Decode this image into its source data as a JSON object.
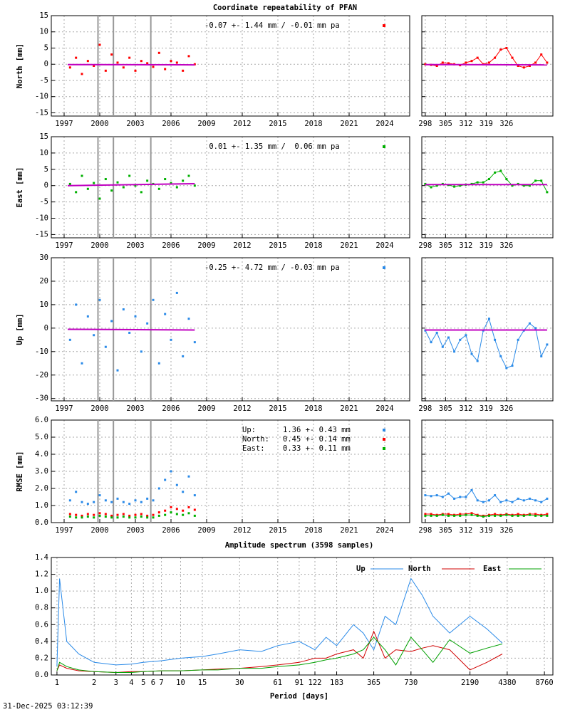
{
  "title": "Coordinate repeatability of PFAN",
  "timestamp": "31-Dec-2025 03:12:39",
  "chart_data": [
    {
      "type": "scatter",
      "ylabel": "North [mm]",
      "grid": true,
      "xlim": [
        1995.92,
        2026.1
      ],
      "ylim": [
        -16,
        15
      ],
      "xticks": [
        1997,
        2000,
        2003,
        2006,
        2009,
        2012,
        2015,
        2018,
        2021,
        2024
      ],
      "yticks": [
        -15,
        -10,
        -5,
        0,
        5,
        10,
        15
      ],
      "annotation": "-0.07 +- 1.44 mm / -0.01 mm pa",
      "events": [
        1999.85,
        2001.15,
        2004.3
      ],
      "trend": {
        "color": "#c000c0",
        "x": [
          1997.3,
          2008.0
        ],
        "y": [
          -0.1,
          -0.2
        ]
      },
      "x": [
        1997.5,
        1998,
        1998.5,
        1999,
        1999.5,
        2000,
        2000.5,
        2001,
        2001.5,
        2002,
        2002.5,
        2003,
        2003.5,
        2004,
        2004.5,
        2005,
        2005.5,
        2006,
        2006.5,
        2007,
        2007.5,
        2008
      ],
      "series": [
        {
          "color": "#ff0000",
          "values": [
            -1,
            2,
            -3,
            1,
            -0.5,
            6,
            -2,
            3,
            0.5,
            -1,
            2,
            -2,
            1,
            0.3,
            -0.8,
            3.5,
            -1.5,
            1,
            0.5,
            -2,
            2.5,
            0
          ]
        }
      ]
    },
    {
      "type": "line",
      "markers": true,
      "grid": true,
      "ytick_labels": false,
      "xlim": [
        296.8,
        342
      ],
      "ylim": [
        -16,
        15
      ],
      "xticks": [
        298,
        305,
        312,
        319,
        326
      ],
      "yticks": [
        -15,
        -10,
        -5,
        0,
        5,
        10,
        15
      ],
      "trend": {
        "color": "#c000c0",
        "x": [
          298,
          340
        ],
        "y": [
          -0.1,
          -0.2
        ]
      },
      "x": [
        298,
        300,
        302,
        304,
        306,
        308,
        310,
        312,
        314,
        316,
        318,
        320,
        322,
        324,
        326,
        328,
        330,
        332,
        334,
        336,
        338,
        340
      ],
      "series": [
        {
          "color": "#ff0000",
          "values": [
            0,
            -0.2,
            -0.5,
            0.5,
            0.3,
            0,
            -0.3,
            0.5,
            1,
            2,
            0,
            0.5,
            2,
            4.5,
            5,
            2,
            -0.5,
            -1,
            -0.5,
            0.5,
            3,
            0.5
          ]
        }
      ]
    },
    {
      "type": "scatter",
      "ylabel": "East [mm]",
      "grid": true,
      "xlim": [
        1995.92,
        2026.1
      ],
      "ylim": [
        -16,
        15
      ],
      "xticks": [
        1997,
        2000,
        2003,
        2006,
        2009,
        2012,
        2015,
        2018,
        2021,
        2024
      ],
      "yticks": [
        -15,
        -10,
        -5,
        0,
        5,
        10,
        15
      ],
      "annotation": " 0.01 +- 1.35 mm /  0.06 mm pa",
      "events": [
        1999.85,
        2001.15,
        2004.3
      ],
      "trend": {
        "color": "#c000c0",
        "x": [
          1997.3,
          2008.0
        ],
        "y": [
          0,
          0.6
        ]
      },
      "x": [
        1997.5,
        1998,
        1998.5,
        1999,
        1999.5,
        2000,
        2000.5,
        2001,
        2001.5,
        2002,
        2002.5,
        2003,
        2003.5,
        2004,
        2004.5,
        2005,
        2005.5,
        2006,
        2006.5,
        2007,
        2007.5,
        2008
      ],
      "series": [
        {
          "color": "#00b000",
          "values": [
            0.5,
            -2,
            3,
            -1,
            0.8,
            -4,
            2,
            -1.5,
            1,
            -0.5,
            3,
            0,
            -2,
            1.5,
            0.5,
            -1,
            2,
            0.8,
            -0.5,
            1.5,
            3,
            0
          ]
        }
      ]
    },
    {
      "type": "line",
      "markers": true,
      "grid": true,
      "ytick_labels": false,
      "xlim": [
        296.8,
        342
      ],
      "ylim": [
        -16,
        15
      ],
      "xticks": [
        298,
        305,
        312,
        319,
        326
      ],
      "yticks": [
        -15,
        -10,
        -5,
        0,
        5,
        10,
        15
      ],
      "trend": {
        "color": "#c000c0",
        "x": [
          298,
          340
        ],
        "y": [
          0.3,
          0.3
        ]
      },
      "x": [
        298,
        300,
        302,
        304,
        306,
        308,
        310,
        312,
        314,
        316,
        318,
        320,
        322,
        324,
        326,
        328,
        330,
        332,
        334,
        336,
        338,
        340
      ],
      "series": [
        {
          "color": "#00b000",
          "values": [
            0.5,
            -0.5,
            0,
            0.5,
            0.2,
            -0.3,
            0,
            0.3,
            0.5,
            1,
            1,
            2,
            4,
            4.5,
            2,
            0,
            0.5,
            0,
            0,
            1.5,
            1.5,
            -2
          ]
        }
      ]
    },
    {
      "type": "scatter",
      "ylabel": "Up [mm]",
      "grid": true,
      "xlim": [
        1995.92,
        2026.1
      ],
      "ylim": [
        -31,
        30
      ],
      "xticks": [
        1997,
        2000,
        2003,
        2006,
        2009,
        2012,
        2015,
        2018,
        2021,
        2024
      ],
      "yticks": [
        -30,
        -20,
        -10,
        0,
        10,
        20,
        30
      ],
      "annotation": "-0.25 +- 4.72 mm / -0.03 mm pa",
      "events": [
        1999.85,
        2001.15,
        2004.3
      ],
      "trend": {
        "color": "#c000c0",
        "x": [
          1997.3,
          2008.0
        ],
        "y": [
          -0.5,
          -0.8
        ]
      },
      "x": [
        1997.5,
        1998,
        1998.5,
        1999,
        1999.5,
        2000,
        2000.5,
        2001,
        2001.5,
        2002,
        2002.5,
        2003,
        2003.5,
        2004,
        2004.5,
        2005,
        2005.5,
        2006,
        2006.5,
        2007,
        2007.5,
        2008
      ],
      "series": [
        {
          "color": "#2a8ae8",
          "values": [
            -5,
            10,
            -15,
            5,
            -3,
            12,
            -8,
            3,
            -18,
            8,
            -2,
            5,
            -10,
            2,
            12,
            -15,
            6,
            -5,
            15,
            -12,
            4,
            -6
          ]
        }
      ]
    },
    {
      "type": "line",
      "markers": true,
      "grid": true,
      "ytick_labels": false,
      "xlim": [
        296.8,
        342
      ],
      "ylim": [
        -31,
        30
      ],
      "xticks": [
        298,
        305,
        312,
        319,
        326
      ],
      "yticks": [
        -30,
        -20,
        -10,
        0,
        10,
        20,
        30
      ],
      "trend": {
        "color": "#c000c0",
        "x": [
          298,
          340
        ],
        "y": [
          -0.8,
          -0.8
        ]
      },
      "x": [
        298,
        300,
        302,
        304,
        306,
        308,
        310,
        312,
        314,
        316,
        318,
        320,
        322,
        324,
        326,
        328,
        330,
        332,
        334,
        336,
        338,
        340
      ],
      "series": [
        {
          "color": "#2a8ae8",
          "values": [
            -1,
            -6,
            -2,
            -8,
            -4,
            -10,
            -5,
            -3,
            -11,
            -14,
            -1,
            4,
            -5,
            -12,
            -17,
            -16,
            -5,
            -1,
            2,
            0,
            -12,
            -7
          ]
        }
      ]
    },
    {
      "type": "scatter",
      "ylabel": "RMSE [mm]",
      "grid": true,
      "xlim": [
        1995.92,
        2026.1
      ],
      "ylim": [
        0,
        6
      ],
      "xticks": [
        1997,
        2000,
        2003,
        2006,
        2009,
        2012,
        2015,
        2018,
        2021,
        2024
      ],
      "yticks": [
        {
          "value": 0,
          "label": "0.0"
        },
        {
          "value": 1,
          "label": "1.0"
        },
        {
          "value": 2,
          "label": "2.0"
        },
        {
          "value": 3,
          "label": "3.0"
        },
        {
          "value": 4,
          "label": "4.0"
        },
        {
          "value": 5,
          "label": "5.0"
        },
        {
          "value": 6,
          "label": "6.0"
        }
      ],
      "events": [
        1999.85,
        2001.15,
        2004.3
      ],
      "x": [
        1997.5,
        1998,
        1998.5,
        1999,
        1999.5,
        2000,
        2000.5,
        2001,
        2001.5,
        2002,
        2002.5,
        2003,
        2003.5,
        2004,
        2004.5,
        2005,
        2005.5,
        2006,
        2006.5,
        2007,
        2007.5,
        2008
      ],
      "series": [
        {
          "name": "Up:",
          "stat": "1.36 +- 0.43 mm",
          "color": "#2a8ae8",
          "values": [
            1.3,
            1.8,
            1.2,
            1.1,
            1.2,
            1.6,
            1.3,
            1.2,
            1.4,
            1.2,
            1.1,
            1.3,
            1.2,
            1.4,
            1.3,
            2.0,
            2.5,
            3.0,
            2.2,
            1.8,
            2.7,
            1.6
          ]
        },
        {
          "name": "North:",
          "stat": "0.45 +- 0.14 mm",
          "color": "#ff0000",
          "values": [
            0.5,
            0.45,
            0.4,
            0.5,
            0.45,
            0.55,
            0.5,
            0.4,
            0.45,
            0.5,
            0.4,
            0.45,
            0.5,
            0.4,
            0.45,
            0.6,
            0.7,
            0.9,
            0.8,
            0.7,
            0.9,
            0.75
          ]
        },
        {
          "name": "East:",
          "stat": "0.33 +- 0.11 mm",
          "color": "#00b000",
          "values": [
            0.35,
            0.3,
            0.3,
            0.35,
            0.3,
            0.4,
            0.35,
            0.3,
            0.3,
            0.35,
            0.3,
            0.3,
            0.35,
            0.3,
            0.3,
            0.4,
            0.45,
            0.6,
            0.5,
            0.45,
            0.55,
            0.4
          ]
        }
      ]
    },
    {
      "type": "line",
      "markers": true,
      "grid": true,
      "ytick_labels": false,
      "xlim": [
        296.8,
        342
      ],
      "ylim": [
        0,
        6
      ],
      "xticks": [
        298,
        305,
        312,
        319,
        326
      ],
      "yticks": [
        0,
        1,
        2,
        3,
        4,
        5,
        6
      ],
      "x": [
        298,
        300,
        302,
        304,
        306,
        308,
        310,
        312,
        314,
        316,
        318,
        320,
        322,
        324,
        326,
        328,
        330,
        332,
        334,
        336,
        338,
        340
      ],
      "series": [
        {
          "color": "#2a8ae8",
          "values": [
            1.6,
            1.55,
            1.6,
            1.5,
            1.7,
            1.4,
            1.5,
            1.5,
            1.9,
            1.3,
            1.2,
            1.3,
            1.6,
            1.2,
            1.3,
            1.2,
            1.4,
            1.3,
            1.4,
            1.3,
            1.2,
            1.4
          ]
        },
        {
          "color": "#ff0000",
          "values": [
            0.5,
            0.5,
            0.45,
            0.5,
            0.5,
            0.45,
            0.5,
            0.5,
            0.55,
            0.45,
            0.4,
            0.45,
            0.5,
            0.45,
            0.5,
            0.45,
            0.5,
            0.45,
            0.5,
            0.5,
            0.45,
            0.5
          ]
        },
        {
          "color": "#00b000",
          "values": [
            0.4,
            0.4,
            0.4,
            0.45,
            0.4,
            0.4,
            0.4,
            0.45,
            0.45,
            0.4,
            0.35,
            0.4,
            0.4,
            0.4,
            0.45,
            0.4,
            0.4,
            0.4,
            0.45,
            0.4,
            0.4,
            0.4
          ]
        }
      ]
    },
    {
      "type": "line",
      "title": "Amplitude spectrum (3598 samples)",
      "xlabel": "Period [days]",
      "xlog": true,
      "grid": true,
      "legend": "top-right",
      "xlim": [
        0.9,
        10260
      ],
      "ylim": [
        0,
        1.4
      ],
      "xticks": [
        1,
        2,
        3,
        4,
        5,
        6,
        7,
        10,
        15,
        30,
        61,
        91,
        122,
        183,
        365,
        730,
        2190,
        4380,
        8760
      ],
      "yticks": [
        {
          "value": 0,
          "label": "0.0"
        },
        0.2,
        0.4,
        0.6,
        0.8,
        {
          "value": 1,
          "label": "1.0"
        },
        1.2,
        1.4
      ],
      "x": [
        1,
        1.05,
        1.2,
        1.5,
        2,
        3,
        4,
        5,
        7,
        10,
        15,
        20,
        30,
        45,
        61,
        91,
        122,
        150,
        183,
        250,
        300,
        365,
        450,
        550,
        730,
        900,
        1100,
        1500,
        2190,
        3000,
        4000
      ],
      "series": [
        {
          "name": "Up",
          "color": "#2a8ae8",
          "values": [
            0.1,
            1.15,
            0.4,
            0.25,
            0.15,
            0.12,
            0.13,
            0.15,
            0.17,
            0.2,
            0.22,
            0.25,
            0.3,
            0.28,
            0.35,
            0.4,
            0.3,
            0.45,
            0.35,
            0.6,
            0.5,
            0.3,
            0.7,
            0.6,
            1.15,
            0.95,
            0.7,
            0.5,
            0.7,
            0.55,
            0.38
          ]
        },
        {
          "name": "North",
          "color": "#d00000",
          "values": [
            0.05,
            0.12,
            0.08,
            0.05,
            0.04,
            0.03,
            0.04,
            0.04,
            0.05,
            0.05,
            0.06,
            0.07,
            0.08,
            0.1,
            0.12,
            0.15,
            0.2,
            0.2,
            0.25,
            0.3,
            0.2,
            0.52,
            0.2,
            0.3,
            0.28,
            0.32,
            0.35,
            0.3,
            0.06,
            0.15,
            0.25
          ]
        },
        {
          "name": "East",
          "color": "#00a000",
          "values": [
            0.05,
            0.15,
            0.1,
            0.06,
            0.04,
            0.03,
            0.03,
            0.04,
            0.05,
            0.05,
            0.06,
            0.06,
            0.08,
            0.08,
            0.1,
            0.12,
            0.15,
            0.18,
            0.2,
            0.25,
            0.3,
            0.45,
            0.3,
            0.12,
            0.45,
            0.3,
            0.15,
            0.42,
            0.26,
            0.32,
            0.37
          ]
        }
      ]
    }
  ]
}
